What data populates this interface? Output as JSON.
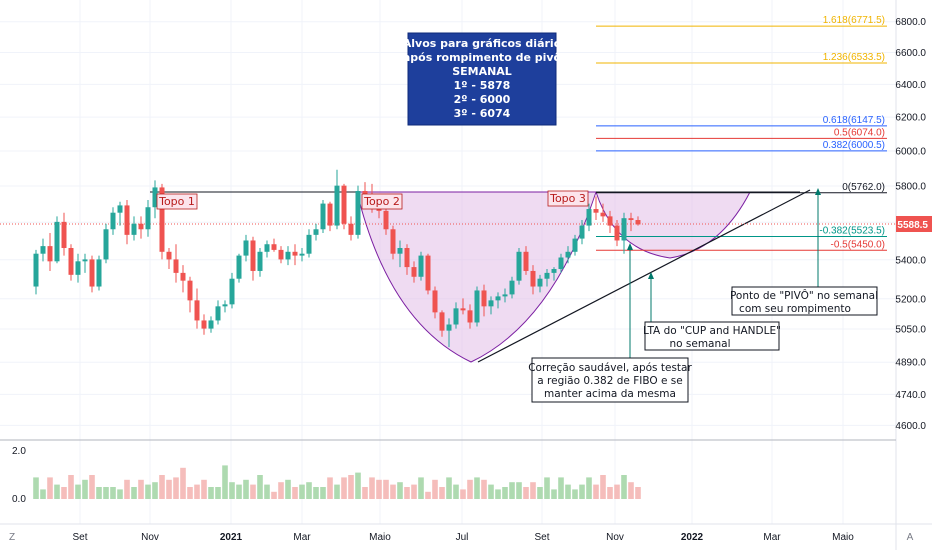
{
  "chart_data": {
    "type": "candlestick",
    "price_axis": {
      "ticks": [
        "6800.0",
        "6600.0",
        "6400.0",
        "6200.0",
        "6000.0",
        "5800.0",
        "5600.0",
        "5400.0",
        "5200.0",
        "5050.0",
        "4890.0",
        "4740.0",
        "4600.0"
      ],
      "last_price": "5588.5",
      "scale": "log"
    },
    "volume_axis": {
      "ticks": [
        "2.0",
        "0.0"
      ]
    },
    "time_axis": {
      "labels": [
        {
          "text": "Set",
          "bold": false
        },
        {
          "text": "Nov",
          "bold": false
        },
        {
          "text": "2021",
          "bold": true
        },
        {
          "text": "Mar",
          "bold": false
        },
        {
          "text": "Maio",
          "bold": false
        },
        {
          "text": "Jul",
          "bold": false
        },
        {
          "text": "Set",
          "bold": false
        },
        {
          "text": "Nov",
          "bold": false
        },
        {
          "text": "2022",
          "bold": true
        },
        {
          "text": "Mar",
          "bold": false
        },
        {
          "text": "Maio",
          "bold": false
        }
      ]
    },
    "fibonacci": [
      {
        "label": "1.618(6771.5)",
        "price": 6771.5,
        "color": "#f0b400"
      },
      {
        "label": "1.236(6533.5)",
        "price": 6533.5,
        "color": "#f0b400"
      },
      {
        "label": "0.618(6147.5)",
        "price": 6147.5,
        "color": "#2962ff"
      },
      {
        "label": "0.5(6074.0)",
        "price": 6074.0,
        "color": "#e53935"
      },
      {
        "label": "0.382(6000.5)",
        "price": 6000.5,
        "color": "#2962ff"
      },
      {
        "label": "0(5762.0)",
        "price": 5762.0,
        "color": "#131722"
      },
      {
        "label": "-0.382(5523.5)",
        "price": 5523.5,
        "color": "#009688"
      },
      {
        "label": "-0.5(5450.0)",
        "price": 5450.0,
        "color": "#e53935"
      }
    ],
    "candles": [
      [
        5262,
        5452,
        5222,
        5432
      ],
      [
        5432,
        5512,
        5392,
        5472
      ],
      [
        5472,
        5542,
        5342,
        5392
      ],
      [
        5392,
        5632,
        5382,
        5602
      ],
      [
        5602,
        5652,
        5422,
        5462
      ],
      [
        5462,
        5482,
        5292,
        5322
      ],
      [
        5322,
        5432,
        5282,
        5392
      ],
      [
        5392,
        5432,
        5332,
        5402
      ],
      [
        5402,
        5422,
        5232,
        5262
      ],
      [
        5262,
        5422,
        5242,
        5402
      ],
      [
        5402,
        5592,
        5382,
        5562
      ],
      [
        5562,
        5682,
        5532,
        5652
      ],
      [
        5652,
        5712,
        5582,
        5692
      ],
      [
        5692,
        5722,
        5482,
        5532
      ],
      [
        5532,
        5632,
        5502,
        5592
      ],
      [
        5592,
        5632,
        5512,
        5562
      ],
      [
        5562,
        5722,
        5522,
        5682
      ],
      [
        5682,
        5832,
        5622,
        5792
      ],
      [
        5792,
        5812,
        5402,
        5442
      ],
      [
        5442,
        5462,
        5352,
        5402
      ],
      [
        5402,
        5482,
        5282,
        5332
      ],
      [
        5332,
        5372,
        5232,
        5292
      ],
      [
        5292,
        5312,
        5132,
        5192
      ],
      [
        5192,
        5252,
        5052,
        5092
      ],
      [
        5092,
        5122,
        5022,
        5052
      ],
      [
        5052,
        5112,
        5032,
        5092
      ],
      [
        5092,
        5192,
        5072,
        5162
      ],
      [
        5162,
        5192,
        5132,
        5172
      ],
      [
        5172,
        5332,
        5152,
        5302
      ],
      [
        5302,
        5432,
        5282,
        5422
      ],
      [
        5422,
        5532,
        5392,
        5502
      ],
      [
        5502,
        5522,
        5292,
        5342
      ],
      [
        5342,
        5462,
        5312,
        5442
      ],
      [
        5442,
        5502,
        5412,
        5482
      ],
      [
        5482,
        5512,
        5442,
        5452
      ],
      [
        5452,
        5472,
        5382,
        5402
      ],
      [
        5402,
        5472,
        5372,
        5442
      ],
      [
        5442,
        5482,
        5372,
        5422
      ],
      [
        5422,
        5462,
        5392,
        5432
      ],
      [
        5432,
        5562,
        5412,
        5532
      ],
      [
        5532,
        5592,
        5502,
        5562
      ],
      [
        5562,
        5722,
        5542,
        5702
      ],
      [
        5702,
        5712,
        5552,
        5582
      ],
      [
        5582,
        5892,
        5562,
        5802
      ],
      [
        5802,
        5812,
        5562,
        5592
      ],
      [
        5592,
        5632,
        5502,
        5532
      ],
      [
        5532,
        5802,
        5512,
        5772
      ],
      [
        5772,
        5822,
        5692,
        5752
      ],
      [
        5752,
        5812,
        5652,
        5702
      ],
      [
        5702,
        5752,
        5622,
        5662
      ],
      [
        5662,
        5692,
        5532,
        5562
      ],
      [
        5562,
        5582,
        5402,
        5432
      ],
      [
        5432,
        5502,
        5362,
        5462
      ],
      [
        5462,
        5482,
        5322,
        5362
      ],
      [
        5362,
        5392,
        5282,
        5312
      ],
      [
        5312,
        5442,
        5292,
        5422
      ],
      [
        5422,
        5432,
        5222,
        5242
      ],
      [
        5242,
        5262,
        5102,
        5132
      ],
      [
        5132,
        5142,
        5012,
        5042
      ],
      [
        5042,
        5102,
        4962,
        5072
      ],
      [
        5072,
        5182,
        5052,
        5152
      ],
      [
        5152,
        5202,
        5122,
        5142
      ],
      [
        5142,
        5172,
        5052,
        5082
      ],
      [
        5082,
        5262,
        5062,
        5242
      ],
      [
        5242,
        5272,
        5112,
        5162
      ],
      [
        5162,
        5212,
        5122,
        5192
      ],
      [
        5192,
        5232,
        5152,
        5212
      ],
      [
        5212,
        5252,
        5182,
        5222
      ],
      [
        5222,
        5312,
        5202,
        5292
      ],
      [
        5292,
        5462,
        5272,
        5442
      ],
      [
        5442,
        5472,
        5322,
        5342
      ],
      [
        5342,
        5372,
        5222,
        5262
      ],
      [
        5262,
        5322,
        5232,
        5302
      ],
      [
        5302,
        5352,
        5262,
        5332
      ],
      [
        5332,
        5362,
        5292,
        5352
      ],
      [
        5352,
        5432,
        5332,
        5412
      ],
      [
        5412,
        5472,
        5382,
        5442
      ],
      [
        5442,
        5532,
        5422,
        5512
      ],
      [
        5512,
        5612,
        5482,
        5582
      ],
      [
        5582,
        5702,
        5552,
        5672
      ],
      [
        5672,
        5742,
        5612,
        5652
      ],
      [
        5652,
        5702,
        5602,
        5632
      ],
      [
        5632,
        5662,
        5542,
        5582
      ],
      [
        5582,
        5612,
        5472,
        5502
      ],
      [
        5502,
        5652,
        5432,
        5622
      ],
      [
        5622,
        5652,
        5552,
        5612
      ],
      [
        5612,
        5632,
        5582,
        5588
      ]
    ],
    "volume": [
      0.9,
      0.4,
      0.9,
      0.6,
      0.5,
      1.0,
      0.6,
      0.8,
      1.0,
      0.5,
      0.5,
      0.5,
      0.4,
      0.8,
      0.5,
      0.8,
      0.6,
      0.7,
      1.0,
      0.8,
      0.9,
      1.3,
      0.5,
      0.6,
      0.8,
      0.5,
      0.5,
      1.4,
      0.7,
      0.6,
      0.8,
      0.6,
      1.0,
      0.6,
      0.3,
      0.7,
      0.8,
      0.5,
      0.6,
      0.7,
      0.5,
      0.5,
      0.9,
      0.6,
      0.9,
      1.0,
      1.1,
      0.5,
      0.9,
      0.8,
      0.8,
      0.6,
      0.7,
      0.5,
      0.6,
      0.9,
      0.3,
      0.8,
      0.5,
      0.9,
      0.6,
      0.4,
      0.8,
      0.9,
      0.8,
      0.6,
      0.4,
      0.5,
      0.7,
      0.7,
      0.5,
      0.7,
      0.5,
      0.9,
      0.4,
      0.9,
      0.6,
      0.4,
      0.6,
      0.9,
      0.6,
      1.0,
      0.5,
      0.6,
      1.0,
      0.7,
      0.5
    ]
  },
  "annotations": {
    "targets_box": [
      "Alvos para gráficos diário",
      "após rompimento de pivô",
      "SEMANAL",
      "1º - 5878",
      "2º - 6000",
      "3º - 6074"
    ],
    "topo1": "Topo 1",
    "topo2": "Topo 2",
    "topo3": "Topo 3",
    "correction_note": [
      "Correção saudável, após testar",
      "a região 0.382 de FIBO e se",
      "manter acima da mesma"
    ],
    "lta_note": [
      "LTA do \"CUP and HANDLE\"",
      "no semanal"
    ],
    "pivot_note": [
      "Ponto de \"PIVÔ\" no semanal",
      "com seu rompimento"
    ]
  },
  "chrome": {
    "timezone_button": "Z",
    "auto_button": "A"
  },
  "colors": {
    "up": "#26a69a",
    "down": "#ef5350",
    "box_bg": "#1e3f9c",
    "cup_fill": "#e1bee7",
    "cup_line": "#7b1fa2"
  }
}
